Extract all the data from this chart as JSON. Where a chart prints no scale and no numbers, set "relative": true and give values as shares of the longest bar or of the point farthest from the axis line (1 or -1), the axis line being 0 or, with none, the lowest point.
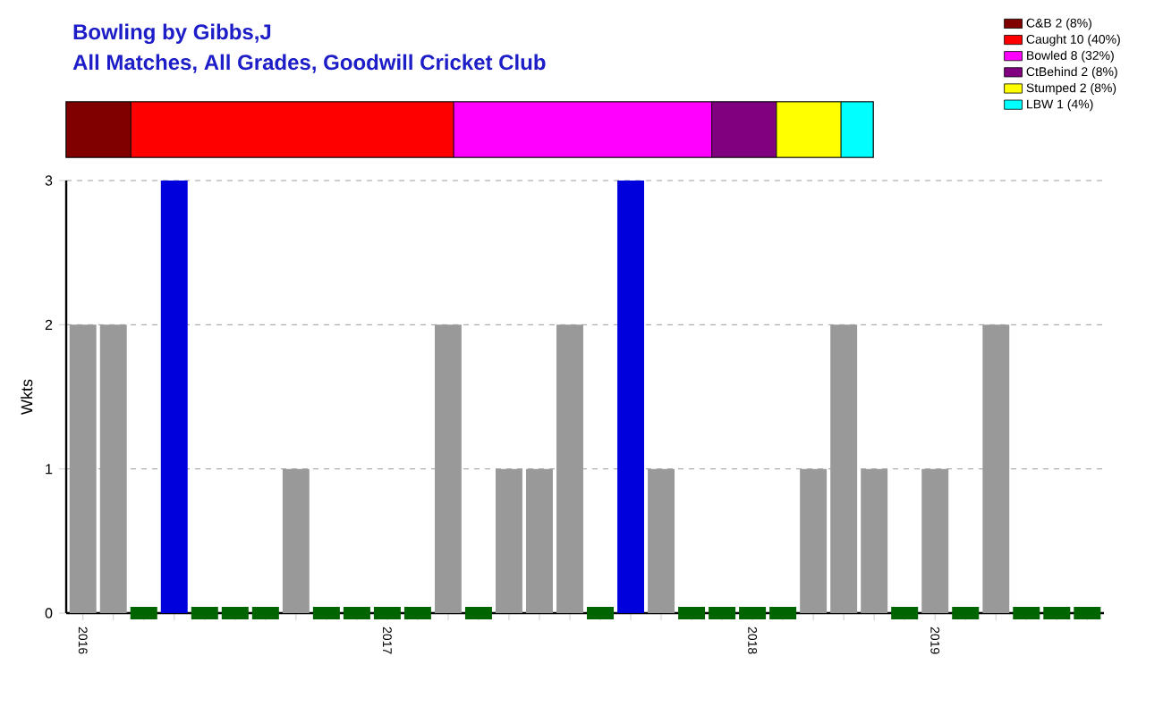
{
  "chart_data": [
    {
      "type": "bar",
      "title": "Bowling by Gibbs,J",
      "subtitle": "All Matches, All Grades, Goodwill Cricket Club",
      "orientation": "horizontal",
      "stacked": true,
      "relative": true,
      "categories": [
        null
      ],
      "legend": "top right",
      "series": [
        {
          "name": "C&B 2 (8%)",
          "color": "#800000",
          "values": [
            0.08
          ]
        },
        {
          "name": "Caught 10 (40%)",
          "color": "#ff0000",
          "values": [
            0.4
          ]
        },
        {
          "name": "Bowled 8 (32%)",
          "color": "#ff00ff",
          "values": [
            0.32
          ]
        },
        {
          "name": "CtBehind 2 (8%)",
          "color": "#800080",
          "values": [
            0.08
          ]
        },
        {
          "name": "Stumped 2 (8%)",
          "color": "#ffff00",
          "values": [
            0.08
          ]
        },
        {
          "name": "LBW 1 (4%)",
          "color": "#00ffff",
          "values": [
            0.04
          ]
        }
      ]
    },
    {
      "type": "bar",
      "ylabel": "Wkts",
      "ylim": [
        0,
        3
      ],
      "yticks": [
        0,
        1,
        2,
        3
      ],
      "grid": "y",
      "categories": [
        "2016",
        null,
        null,
        null,
        null,
        null,
        null,
        null,
        null,
        null,
        "2017",
        null,
        null,
        null,
        null,
        null,
        null,
        null,
        null,
        null,
        null,
        null,
        "2018",
        null,
        null,
        null,
        null,
        null,
        "2019",
        null,
        null,
        null,
        null,
        null
      ],
      "series": [
        {
          "values": [
            2,
            2,
            0,
            3,
            0,
            0,
            0,
            1,
            0,
            0,
            0,
            0,
            2,
            0,
            1,
            1,
            2,
            0,
            3,
            1,
            0,
            0,
            0,
            0,
            1,
            2,
            1,
            0,
            1,
            0,
            2,
            0,
            0,
            0
          ],
          "colors": [
            "#999999",
            "#999999",
            null,
            "#0000dd",
            null,
            null,
            null,
            "#999999",
            null,
            null,
            null,
            null,
            "#999999",
            null,
            "#999999",
            "#999999",
            "#999999",
            null,
            "#0000dd",
            "#999999",
            null,
            null,
            null,
            null,
            "#999999",
            "#999999",
            "#999999",
            null,
            "#999999",
            null,
            "#999999",
            null,
            null,
            null
          ]
        },
        {
          "type": "scatter",
          "marker": "square",
          "color": "#006400",
          "values": [
            null,
            null,
            0,
            null,
            0,
            0,
            0,
            null,
            0,
            0,
            0,
            0,
            null,
            0,
            null,
            null,
            null,
            0,
            null,
            null,
            0,
            0,
            0,
            0,
            null,
            null,
            null,
            0,
            null,
            0,
            null,
            0,
            0,
            0
          ]
        }
      ]
    }
  ]
}
